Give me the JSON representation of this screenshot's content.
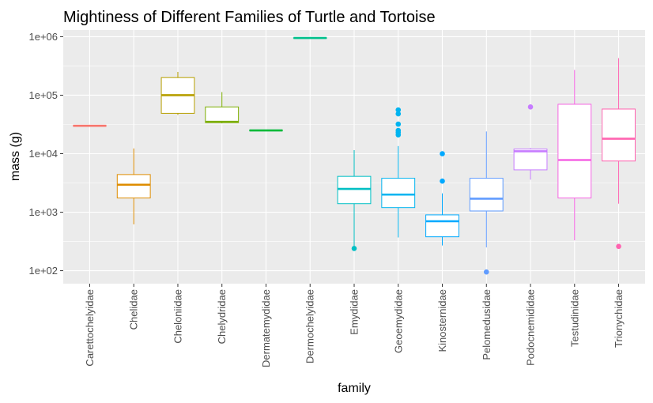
{
  "chart_data": {
    "type": "boxplot",
    "title": "Mightiness of Different Families of Turtle and Tortoise",
    "xlabel": "family",
    "ylabel": "mass (g)",
    "y_scale": "log10",
    "ylim": [
      60,
      1300000
    ],
    "y_ticks": [
      {
        "value": 100,
        "label": "1e+02"
      },
      {
        "value": 1000,
        "label": "1e+03"
      },
      {
        "value": 10000,
        "label": "1e+04"
      },
      {
        "value": 100000,
        "label": "1e+05"
      },
      {
        "value": 1000000,
        "label": "1e+06"
      }
    ],
    "grid": true,
    "legend": "none",
    "categories": [
      "Carettochelyidae",
      "Chelidae",
      "Cheloniidae",
      "Chelydridae",
      "Dermatemydidae",
      "Dermochelyidae",
      "Emydidae",
      "Geoemydidae",
      "Kinosternidae",
      "Pelomedusidae",
      "Podocnemididae",
      "Testudinidae",
      "Trionychidae"
    ],
    "boxes": [
      {
        "family": "Carettochelyidae",
        "color": "#F8766D",
        "min": 30000,
        "q1": 30000,
        "median": 30000,
        "q3": 30000,
        "max": 30000,
        "outliers": []
      },
      {
        "family": "Chelidae",
        "color": "#DE8C00",
        "min": 620,
        "q1": 1750,
        "median": 2950,
        "q3": 4400,
        "max": 12300,
        "outliers": []
      },
      {
        "family": "Cheloniidae",
        "color": "#B79F00",
        "min": 46000,
        "q1": 49000,
        "median": 100000,
        "q3": 200000,
        "max": 250000,
        "outliers": []
      },
      {
        "family": "Chelydridae",
        "color": "#7CAE00",
        "min": 33000,
        "q1": 34000,
        "median": 35000,
        "q3": 63000,
        "max": 113000,
        "outliers": []
      },
      {
        "family": "Dermatemydidae",
        "color": "#00BA38",
        "min": 25000,
        "q1": 25000,
        "median": 25000,
        "q3": 25000,
        "max": 25000,
        "outliers": []
      },
      {
        "family": "Dermochelyidae",
        "color": "#00C08B",
        "min": 950000,
        "q1": 950000,
        "median": 950000,
        "q3": 950000,
        "max": 950000,
        "outliers": []
      },
      {
        "family": "Emydidae",
        "color": "#00BFC4",
        "min": 250,
        "q1": 1400,
        "median": 2500,
        "q3": 4100,
        "max": 11500,
        "outliers": [
          240
        ]
      },
      {
        "family": "Geoemydidae",
        "color": "#00B4F0",
        "min": 370,
        "q1": 1200,
        "median": 2000,
        "q3": 3800,
        "max": 13500,
        "outliers": [
          21000,
          23000,
          25000,
          32000,
          48000,
          56000
        ]
      },
      {
        "family": "Kinosternidae",
        "color": "#00A9FF",
        "min": 270,
        "q1": 380,
        "median": 700,
        "q3": 900,
        "max": 2100,
        "outliers": [
          3400,
          10000
        ]
      },
      {
        "family": "Pelomedusidae",
        "color": "#619CFF",
        "min": 250,
        "q1": 1050,
        "median": 1700,
        "q3": 3800,
        "max": 24000,
        "outliers": [
          95
        ]
      },
      {
        "family": "Podocnemididae",
        "color": "#C77CFF",
        "min": 3600,
        "q1": 5300,
        "median": 11000,
        "q3": 12000,
        "max": 12500,
        "outliers": [
          63000
        ]
      },
      {
        "family": "Testudinidae",
        "color": "#F564E3",
        "min": 330,
        "q1": 1750,
        "median": 7800,
        "q3": 70000,
        "max": 270000,
        "outliers": []
      },
      {
        "family": "Trionychidae",
        "color": "#FF64B0",
        "min": 1400,
        "q1": 7500,
        "median": 18000,
        "q3": 58000,
        "max": 430000,
        "outliers": [
          260
        ]
      }
    ]
  }
}
